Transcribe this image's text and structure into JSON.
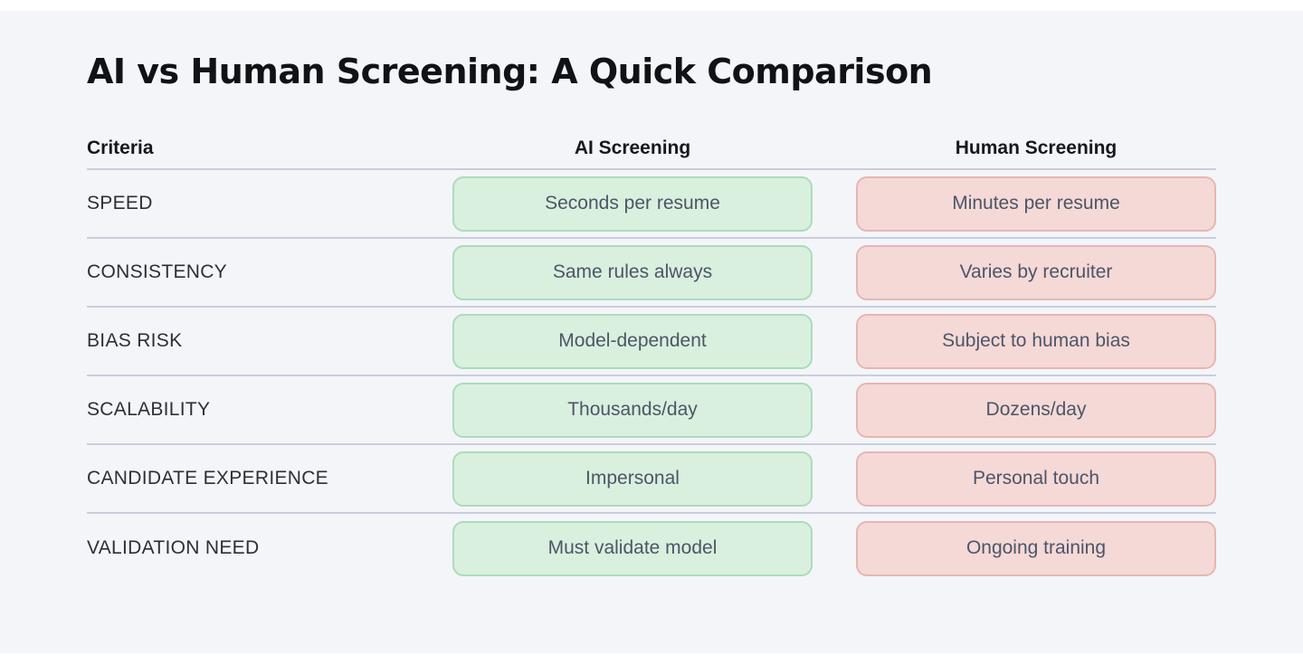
{
  "chart_data": {
    "type": "table",
    "title": "AI vs Human Screening: A Quick Comparison",
    "columns": [
      "Criteria",
      "AI Screening",
      "Human Screening"
    ],
    "rows": [
      [
        "SPEED",
        "Seconds per resume",
        "Minutes per resume"
      ],
      [
        "CONSISTENCY",
        "Same rules always",
        "Varies by recruiter"
      ],
      [
        "BIAS RISK",
        "Model-dependent",
        "Subject to human bias"
      ],
      [
        "SCALABILITY",
        "Thousands/day",
        "Dozens/day"
      ],
      [
        "CANDIDATE EXPERIENCE",
        "Impersonal",
        "Personal touch"
      ],
      [
        "VALIDATION NEED",
        "Must validate model",
        "Ongoing training"
      ]
    ],
    "layout": {
      "ai_column_style": "green-pill",
      "human_column_style": "pink-pill",
      "grid": "horizontal dividers only, none after last row"
    }
  },
  "colors": {
    "page-bg": "#f4f5f9",
    "frame-bg": "#ffffff",
    "title-text": "#101216",
    "header-text": "#16181d",
    "label-text": "#2b3036",
    "pill-text": "#4d5567",
    "ai-pill-bg": "#d9f0de",
    "ai-pill-border": "#abdcba",
    "human-pill-bg": "#f4d9d7",
    "human-pill-border": "#e7b6b2",
    "divider": "#c9cedb"
  }
}
